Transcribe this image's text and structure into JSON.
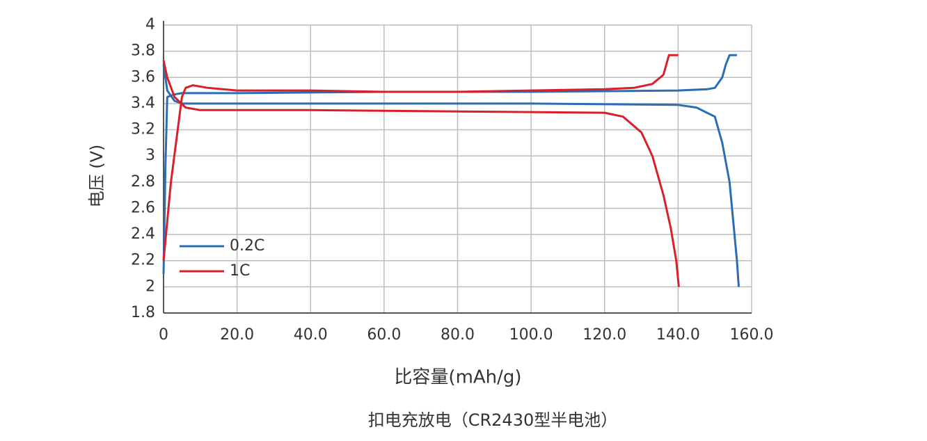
{
  "chart_data": {
    "type": "line",
    "xlabel": "比容量(mAh/g)",
    "ylabel": "电压 (V)",
    "caption": "扣电充放电（CR2430型半电池）",
    "xlim": [
      0,
      160
    ],
    "ylim": [
      1.8,
      4
    ],
    "xticks": [
      0,
      {
        "value": 20,
        "label": "20.0"
      },
      {
        "value": 40,
        "label": "40.0"
      },
      {
        "value": 60,
        "label": "60.0"
      },
      {
        "value": 80,
        "label": "80.0"
      },
      {
        "value": 100,
        "label": "100.0"
      },
      {
        "value": 120,
        "label": "120.0"
      },
      {
        "value": 140,
        "label": "140.0"
      },
      {
        "value": 160,
        "label": "160.0"
      }
    ],
    "yticks": [
      1.8,
      2,
      2.2,
      2.4,
      2.6,
      2.8,
      3,
      3.2,
      3.4,
      3.6,
      3.8,
      4
    ],
    "grid": true,
    "legend": "lower left",
    "series": [
      {
        "name": "0.2C",
        "color": "#2a6db3",
        "x": [
          0,
          0.5,
          1,
          3,
          5,
          20,
          60,
          100,
          140,
          148,
          150,
          152,
          153,
          154,
          156,
          null,
          0,
          1,
          3,
          5,
          20,
          60,
          100,
          140,
          145,
          150,
          152,
          154,
          155,
          156,
          156.5
        ],
        "values": [
          2.1,
          2.9,
          3.45,
          3.47,
          3.48,
          3.48,
          3.49,
          3.49,
          3.5,
          3.51,
          3.52,
          3.6,
          3.7,
          3.77,
          3.77,
          null,
          3.7,
          3.5,
          3.42,
          3.4,
          3.4,
          3.4,
          3.4,
          3.39,
          3.37,
          3.3,
          3.1,
          2.8,
          2.5,
          2.2,
          2.0
        ]
      },
      {
        "name": "1C",
        "color": "#d91f2a",
        "x": [
          0,
          2,
          5,
          6,
          8,
          12,
          20,
          40,
          60,
          80,
          100,
          120,
          128,
          133,
          136,
          137.5,
          140,
          null,
          0,
          1,
          3,
          6,
          10,
          40,
          80,
          120,
          125,
          130,
          133,
          136,
          138,
          139.5,
          140.2
        ],
        "values": [
          2.2,
          2.8,
          3.45,
          3.52,
          3.54,
          3.52,
          3.5,
          3.5,
          3.49,
          3.49,
          3.5,
          3.51,
          3.52,
          3.55,
          3.62,
          3.77,
          3.77,
          null,
          3.73,
          3.6,
          3.45,
          3.37,
          3.35,
          3.35,
          3.34,
          3.33,
          3.3,
          3.18,
          3.0,
          2.7,
          2.45,
          2.2,
          2.0
        ]
      }
    ]
  }
}
